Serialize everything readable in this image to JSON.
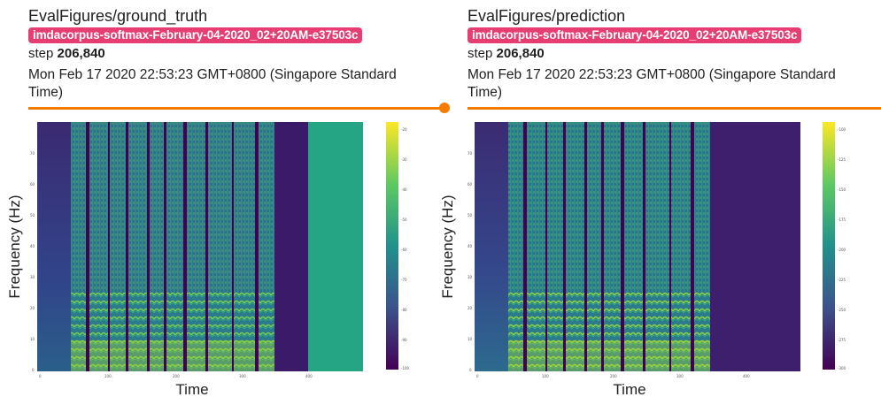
{
  "cards": [
    {
      "title": "EvalFigures/ground_truth",
      "run": "imdacorpus-softmax-February-04-2020_02+20AM-e37503c",
      "step_label": "step",
      "step_value": "206,840",
      "timestamp": "Mon Feb 17 2020 22:53:23 GMT+0800 (Singapore Standard Time)",
      "figure": {
        "xlabel": "Time",
        "ylabel": "Frequency (Hz)",
        "colormap": "viridis",
        "xticks": [
          "0",
          "100",
          "200",
          "300",
          "400"
        ],
        "yticks": [
          "0",
          "10",
          "20",
          "30",
          "40",
          "50",
          "60",
          "70"
        ],
        "colorbar_ticks": [
          "-20",
          "-30",
          "-40",
          "-50",
          "-60",
          "-70",
          "-80",
          "-90",
          "-100"
        ]
      }
    },
    {
      "title": "EvalFigures/prediction",
      "run": "imdacorpus-softmax-February-04-2020_02+20AM-e37503c",
      "step_label": "step",
      "step_value": "206,840",
      "timestamp": "Mon Feb 17 2020 22:53:23 GMT+0800 (Singapore Standard Time)",
      "figure": {
        "xlabel": "Time",
        "ylabel": "Frequency (Hz)",
        "colormap": "viridis",
        "xticks": [
          "0",
          "100",
          "200",
          "300",
          "400"
        ],
        "yticks": [
          "0",
          "10",
          "20",
          "30",
          "40",
          "50",
          "60",
          "70"
        ],
        "colorbar_ticks": [
          "-100",
          "-125",
          "-150",
          "-175",
          "-200",
          "-225",
          "-250",
          "-275",
          "-300"
        ]
      }
    }
  ],
  "colors": {
    "run_tag": "#e63d73",
    "accent_rule": "#f57c00"
  }
}
